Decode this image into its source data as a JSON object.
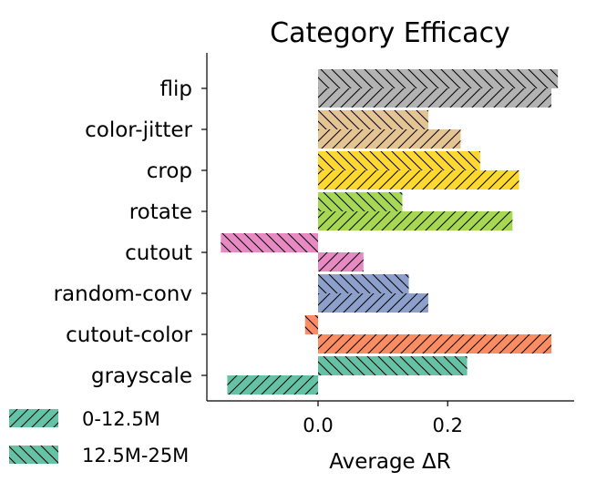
{
  "chart_data": {
    "type": "bar",
    "orientation": "horizontal",
    "title": "Category Efficacy",
    "xlabel": "Average ΔR",
    "ylabel": "",
    "xlim": [
      -0.15,
      0.39
    ],
    "xticks": [
      0.0,
      0.2
    ],
    "xtick_labels": [
      "0.0",
      "0.2"
    ],
    "categories": [
      "flip",
      "color-jitter",
      "crop",
      "rotate",
      "cutout",
      "random-conv",
      "cutout-color",
      "grayscale"
    ],
    "colors": [
      "#b3b3b3",
      "#e5c494",
      "#ffd92f",
      "#a6d854",
      "#e78ac3",
      "#8da0cb",
      "#fc8d62",
      "#66c2a5"
    ],
    "series": [
      {
        "name": "0-12.5M",
        "hatch": "forward-slash",
        "values": [
          0.36,
          0.22,
          0.31,
          0.3,
          0.07,
          0.17,
          0.36,
          -0.14
        ]
      },
      {
        "name": "12.5M-25M",
        "hatch": "back-slash",
        "values": [
          0.37,
          0.17,
          0.25,
          0.13,
          -0.15,
          0.14,
          -0.02,
          0.23
        ]
      }
    ],
    "legend": {
      "placement": "lower-left"
    },
    "grid": false
  }
}
